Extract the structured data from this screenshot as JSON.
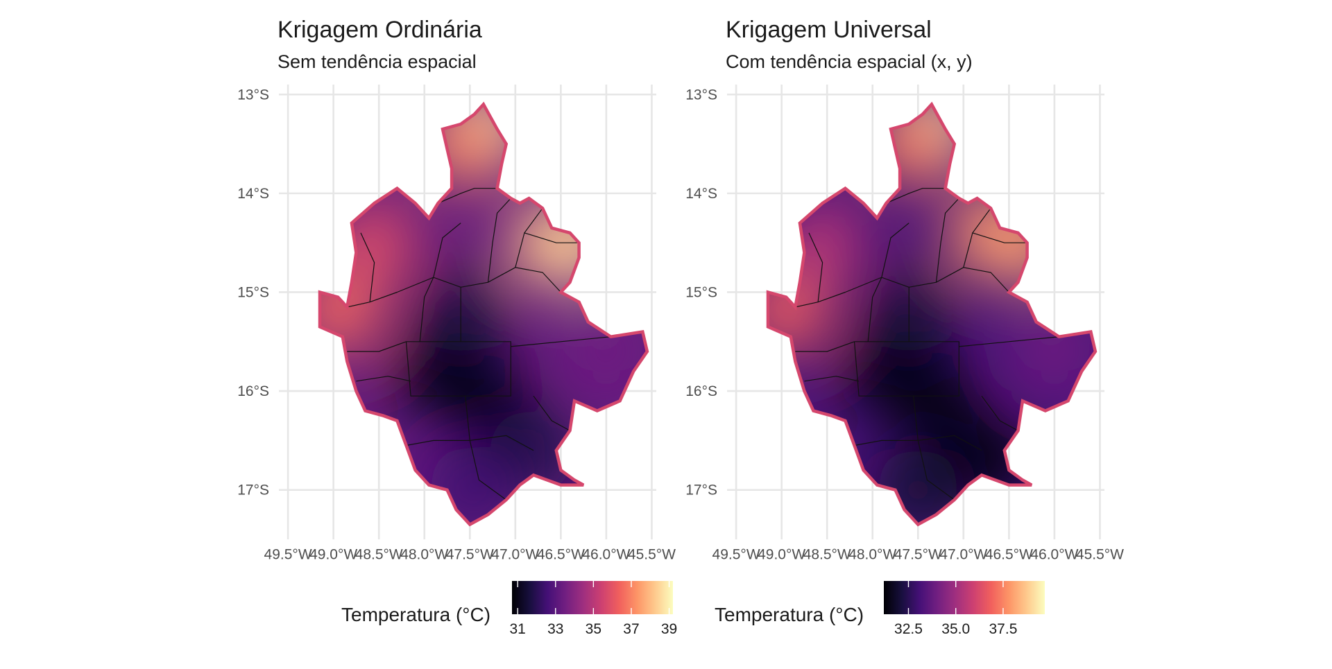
{
  "panels": [
    {
      "title": "Krigagem Ordinária",
      "subtitle": "Sem tendência espacial",
      "legend": {
        "title": "Temperatura (°C)",
        "min": 30.7,
        "max": 39.2,
        "ticks": [
          "31",
          "33",
          "35",
          "37",
          "39"
        ],
        "tick_values": [
          31,
          33,
          35,
          37,
          39
        ]
      },
      "hotspots": [
        {
          "lon": -47.35,
          "lat": -13.35,
          "temp": 39.0
        },
        {
          "lon": -47.55,
          "lat": -13.5,
          "temp": 37.2
        },
        {
          "lon": -46.6,
          "lat": -14.5,
          "temp": 37.8
        },
        {
          "lon": -46.35,
          "lat": -14.5,
          "temp": 38.4
        },
        {
          "lon": -48.95,
          "lat": -15.2,
          "temp": 36.5
        },
        {
          "lon": -48.55,
          "lat": -14.5,
          "temp": 35.8
        },
        {
          "lon": -47.85,
          "lat": -15.8,
          "temp": 30.8
        },
        {
          "lon": -47.3,
          "lat": -16.1,
          "temp": 30.8
        },
        {
          "lon": -47.6,
          "lat": -15.2,
          "temp": 31.6
        },
        {
          "lon": -46.8,
          "lat": -16.6,
          "temp": 31.8
        },
        {
          "lon": -46.0,
          "lat": -15.6,
          "temp": 33.5
        },
        {
          "lon": -47.5,
          "lat": -17.0,
          "temp": 32.5
        }
      ]
    },
    {
      "title": "Krigagem Universal",
      "subtitle": "Com tendência espacial (x, y)",
      "legend": {
        "title": "Temperatura (°C)",
        "min": 31.2,
        "max": 39.7,
        "ticks": [
          "32.5",
          "35.0",
          "37.5"
        ],
        "tick_values": [
          32.5,
          35.0,
          37.5
        ]
      },
      "hotspots": [
        {
          "lon": -47.35,
          "lat": -13.35,
          "temp": 39.5
        },
        {
          "lon": -47.55,
          "lat": -13.5,
          "temp": 37.5
        },
        {
          "lon": -46.7,
          "lat": -14.4,
          "temp": 37.8
        },
        {
          "lon": -46.35,
          "lat": -14.5,
          "temp": 38.0
        },
        {
          "lon": -48.95,
          "lat": -15.2,
          "temp": 36.8
        },
        {
          "lon": -48.55,
          "lat": -14.5,
          "temp": 35.5
        },
        {
          "lon": -47.85,
          "lat": -15.8,
          "temp": 31.3
        },
        {
          "lon": -47.3,
          "lat": -16.1,
          "temp": 31.3
        },
        {
          "lon": -47.6,
          "lat": -15.2,
          "temp": 32.0
        },
        {
          "lon": -46.7,
          "lat": -16.7,
          "temp": 31.4
        },
        {
          "lon": -46.0,
          "lat": -15.6,
          "temp": 34.0
        },
        {
          "lon": -47.5,
          "lat": -17.0,
          "temp": 32.0
        }
      ]
    }
  ],
  "axes": {
    "x_ticks": [
      "49.5°W",
      "49.0°W",
      "48.5°W",
      "48.0°W",
      "47.5°W",
      "47.0°W",
      "46.5°W",
      "46.0°W",
      "45.5°W"
    ],
    "x_values": [
      -49.5,
      -49.0,
      -48.5,
      -48.0,
      -47.5,
      -47.0,
      -46.5,
      -46.0,
      -45.5
    ],
    "y_ticks": [
      "13°S",
      "14°S",
      "15°S",
      "16°S",
      "17°S"
    ],
    "y_values": [
      -13,
      -14,
      -15,
      -16,
      -17
    ],
    "xlim": [
      -49.6,
      -45.45
    ],
    "ylim": [
      -17.5,
      -12.9
    ]
  },
  "colormap": [
    "#000004",
    "#180f3e",
    "#451077",
    "#721f81",
    "#9f2f7f",
    "#cd4071",
    "#f1605d",
    "#fd9567",
    "#feca8d",
    "#fcfdbf"
  ],
  "region_outline": [
    [
      -47.35,
      -13.1
    ],
    [
      -47.2,
      -13.35
    ],
    [
      -47.1,
      -13.5
    ],
    [
      -47.15,
      -13.7
    ],
    [
      -47.2,
      -13.95
    ],
    [
      -47.05,
      -14.05
    ],
    [
      -46.95,
      -14.1
    ],
    [
      -46.85,
      -14.05
    ],
    [
      -46.7,
      -14.15
    ],
    [
      -46.6,
      -14.35
    ],
    [
      -46.4,
      -14.4
    ],
    [
      -46.3,
      -14.5
    ],
    [
      -46.3,
      -14.65
    ],
    [
      -46.4,
      -14.9
    ],
    [
      -46.5,
      -15.0
    ],
    [
      -46.3,
      -15.1
    ],
    [
      -46.2,
      -15.3
    ],
    [
      -45.95,
      -15.45
    ],
    [
      -45.6,
      -15.4
    ],
    [
      -45.55,
      -15.6
    ],
    [
      -45.7,
      -15.8
    ],
    [
      -45.85,
      -16.1
    ],
    [
      -46.1,
      -16.2
    ],
    [
      -46.35,
      -16.1
    ],
    [
      -46.4,
      -16.4
    ],
    [
      -46.55,
      -16.6
    ],
    [
      -46.5,
      -16.8
    ],
    [
      -46.35,
      -16.9
    ],
    [
      -46.25,
      -16.95
    ],
    [
      -46.5,
      -16.95
    ],
    [
      -46.8,
      -16.85
    ],
    [
      -46.95,
      -16.95
    ],
    [
      -47.1,
      -17.1
    ],
    [
      -47.3,
      -17.25
    ],
    [
      -47.5,
      -17.35
    ],
    [
      -47.65,
      -17.2
    ],
    [
      -47.75,
      -17.0
    ],
    [
      -47.95,
      -16.95
    ],
    [
      -48.1,
      -16.8
    ],
    [
      -48.2,
      -16.55
    ],
    [
      -48.3,
      -16.3
    ],
    [
      -48.45,
      -16.25
    ],
    [
      -48.65,
      -16.2
    ],
    [
      -48.75,
      -16.0
    ],
    [
      -48.85,
      -15.7
    ],
    [
      -48.9,
      -15.45
    ],
    [
      -49.15,
      -15.35
    ],
    [
      -49.15,
      -15.0
    ],
    [
      -48.95,
      -15.05
    ],
    [
      -48.85,
      -15.15
    ],
    [
      -48.8,
      -14.9
    ],
    [
      -48.75,
      -14.6
    ],
    [
      -48.8,
      -14.3
    ],
    [
      -48.55,
      -14.1
    ],
    [
      -48.3,
      -13.95
    ],
    [
      -48.1,
      -14.1
    ],
    [
      -47.95,
      -14.25
    ],
    [
      -47.85,
      -14.1
    ],
    [
      -47.7,
      -13.95
    ],
    [
      -47.7,
      -13.75
    ],
    [
      -47.75,
      -13.55
    ],
    [
      -47.8,
      -13.35
    ],
    [
      -47.6,
      -13.3
    ],
    [
      -47.45,
      -13.2
    ]
  ],
  "municipal_borders": [
    [
      [
        -47.85,
        -14.1
      ],
      [
        -47.6,
        -14.0
      ],
      [
        -47.45,
        -13.95
      ],
      [
        -47.2,
        -13.95
      ]
    ],
    [
      [
        -48.3,
        -15.0
      ],
      [
        -47.9,
        -14.85
      ],
      [
        -47.6,
        -14.95
      ],
      [
        -47.3,
        -14.9
      ],
      [
        -47.0,
        -14.75
      ],
      [
        -46.7,
        -14.8
      ],
      [
        -46.5,
        -15.0
      ]
    ],
    [
      [
        -48.85,
        -15.15
      ],
      [
        -48.6,
        -15.1
      ],
      [
        -48.3,
        -15.0
      ]
    ],
    [
      [
        -48.2,
        -15.5
      ],
      [
        -48.05,
        -15.5
      ],
      [
        -47.4,
        -15.5
      ],
      [
        -47.05,
        -15.5
      ],
      [
        -47.05,
        -16.05
      ],
      [
        -47.55,
        -16.05
      ],
      [
        -48.15,
        -16.05
      ],
      [
        -48.2,
        -15.5
      ]
    ],
    [
      [
        -48.85,
        -15.6
      ],
      [
        -48.5,
        -15.6
      ],
      [
        -48.2,
        -15.5
      ]
    ],
    [
      [
        -48.75,
        -15.9
      ],
      [
        -48.4,
        -15.85
      ],
      [
        -48.15,
        -15.9
      ]
    ],
    [
      [
        -47.05,
        -15.55
      ],
      [
        -46.5,
        -15.5
      ],
      [
        -45.95,
        -15.45
      ]
    ],
    [
      [
        -47.55,
        -16.05
      ],
      [
        -47.5,
        -16.5
      ],
      [
        -47.4,
        -16.9
      ],
      [
        -47.1,
        -17.1
      ]
    ],
    [
      [
        -46.8,
        -16.05
      ],
      [
        -46.6,
        -16.3
      ],
      [
        -46.4,
        -16.4
      ]
    ],
    [
      [
        -48.2,
        -16.55
      ],
      [
        -47.9,
        -16.5
      ],
      [
        -47.5,
        -16.5
      ],
      [
        -47.1,
        -16.45
      ],
      [
        -46.8,
        -16.6
      ]
    ],
    [
      [
        -47.3,
        -14.9
      ],
      [
        -47.25,
        -14.5
      ],
      [
        -47.2,
        -14.2
      ],
      [
        -47.05,
        -14.05
      ]
    ],
    [
      [
        -47.9,
        -14.85
      ],
      [
        -47.8,
        -14.45
      ],
      [
        -47.6,
        -14.3
      ]
    ],
    [
      [
        -47.0,
        -14.75
      ],
      [
        -46.9,
        -14.4
      ],
      [
        -46.7,
        -14.15
      ]
    ],
    [
      [
        -46.9,
        -14.4
      ],
      [
        -46.55,
        -14.5
      ],
      [
        -46.3,
        -14.5
      ]
    ],
    [
      [
        -48.6,
        -15.1
      ],
      [
        -48.55,
        -14.7
      ],
      [
        -48.7,
        -14.4
      ]
    ],
    [
      [
        -47.6,
        -14.95
      ],
      [
        -47.6,
        -15.5
      ]
    ],
    [
      [
        -48.05,
        -15.5
      ],
      [
        -48.0,
        -15.05
      ],
      [
        -47.9,
        -14.85
      ]
    ]
  ]
}
